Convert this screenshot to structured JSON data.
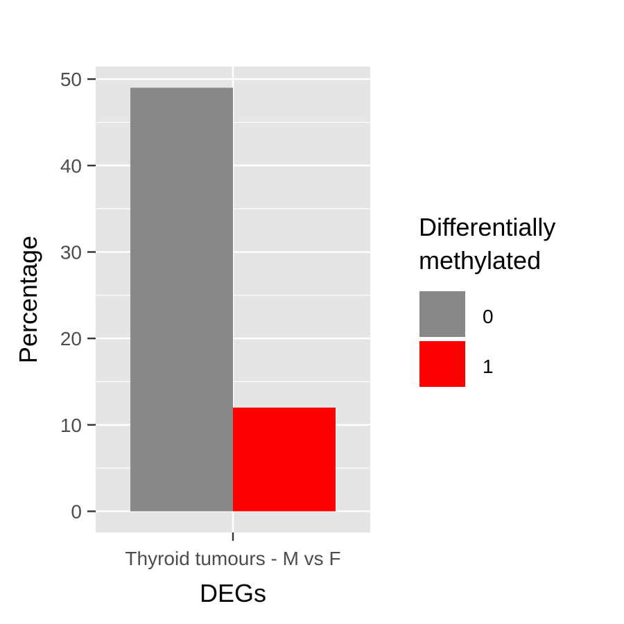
{
  "chart_data": {
    "type": "bar",
    "categories": [
      "Thyroid tumours - M vs F"
    ],
    "series": [
      {
        "name": "0",
        "values": [
          49
        ],
        "color": "#888888"
      },
      {
        "name": "1",
        "values": [
          12
        ],
        "color": "#ff0000"
      }
    ],
    "xlabel": "DEGs",
    "ylabel": "Percentage",
    "ylim": [
      -2.45,
      51.45
    ],
    "yticks": [
      0,
      10,
      20,
      30,
      40,
      50
    ],
    "grid": true,
    "panel_background": "#e5e5e5",
    "legend": {
      "title_lines": [
        "Differentially",
        "methylated"
      ],
      "placement": "right"
    }
  }
}
